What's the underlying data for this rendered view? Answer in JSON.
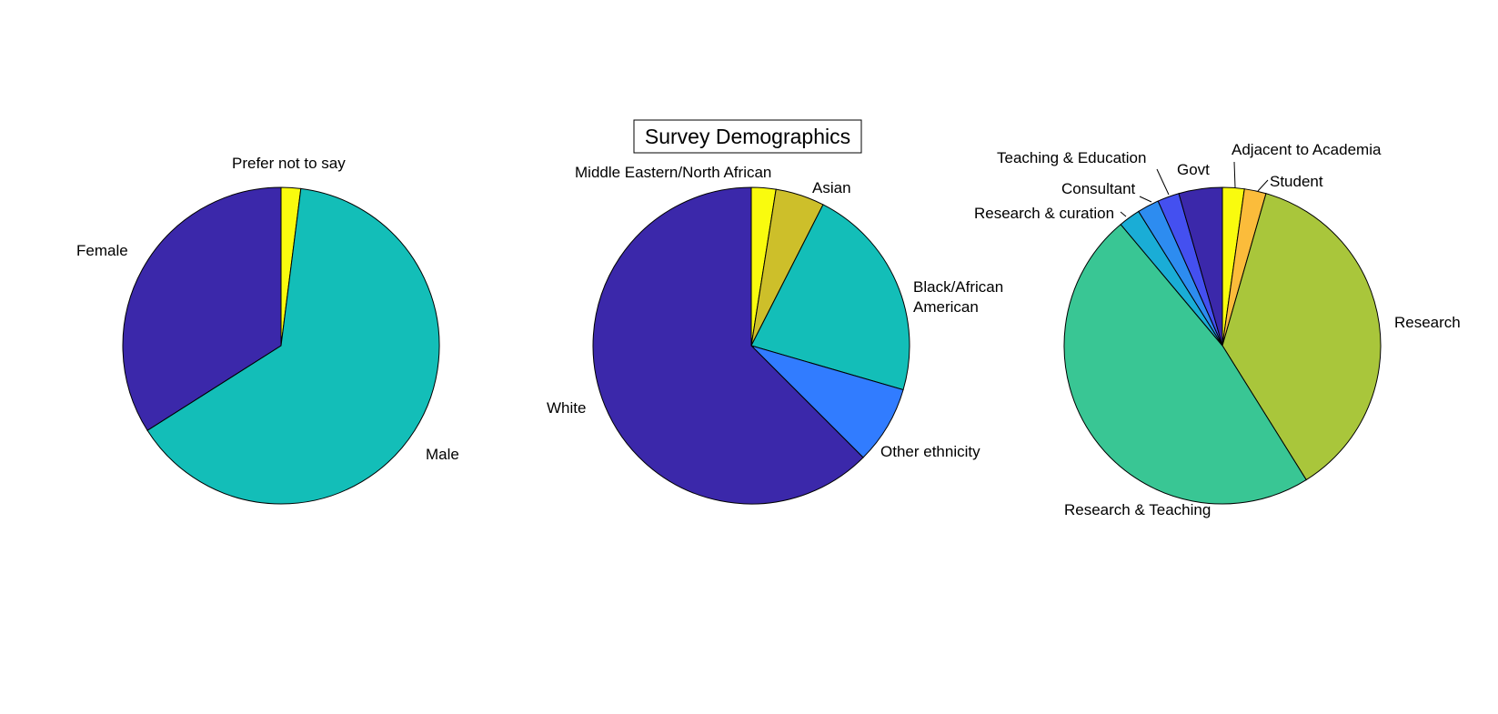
{
  "figure": {
    "title": "Survey Demographics"
  },
  "colors": {
    "yellow": "#F9FB0E",
    "olive": "#CDBF2A",
    "lime": "#A9C63B",
    "orange": "#FBBC3B",
    "teal": "#13BEB8",
    "green": "#39C694",
    "cyan": "#1AADD6",
    "sky": "#2D8CF0",
    "blue": "#317CFF",
    "indigo": "#4450F0",
    "navy": "#3B28AA"
  },
  "chart_data": [
    {
      "type": "pie",
      "title": "",
      "slices": [
        {
          "label": "Prefer not to say",
          "value": 2,
          "color": "#F9FB0E"
        },
        {
          "label": "Male",
          "value": 64,
          "color": "#13BEB8"
        },
        {
          "label": "Female",
          "value": 34,
          "color": "#3B28AA"
        }
      ]
    },
    {
      "type": "pie",
      "title": "Survey Demographics",
      "slices": [
        {
          "label": "Middle Eastern/North African",
          "value": 2.5,
          "color": "#F9FB0E"
        },
        {
          "label": "Asian",
          "value": 5,
          "color": "#CDBF2A"
        },
        {
          "label": "Black/African American",
          "value": 22,
          "color": "#13BEB8"
        },
        {
          "label": "Other ethnicity",
          "value": 8,
          "color": "#317CFF"
        },
        {
          "label": "White",
          "value": 62.5,
          "color": "#3B28AA"
        }
      ]
    },
    {
      "type": "pie",
      "title": "",
      "slices": [
        {
          "label": "Adjacent to Academia",
          "value": 2.2,
          "color": "#F9FB0E"
        },
        {
          "label": "Student",
          "value": 2.2,
          "color": "#FBBC3B"
        },
        {
          "label": "Research",
          "value": 36.3,
          "color": "#A9C63B"
        },
        {
          "label": "Research & Teaching",
          "value": 47.3,
          "color": "#39C694"
        },
        {
          "label": "Research & curation",
          "value": 2.2,
          "color": "#1AADD6"
        },
        {
          "label": "Consultant",
          "value": 2.2,
          "color": "#2D8CF0"
        },
        {
          "label": "Teaching & Education",
          "value": 2.2,
          "color": "#4450F0"
        },
        {
          "label": "Govt",
          "value": 4.4,
          "color": "#3B28AA"
        }
      ]
    }
  ]
}
